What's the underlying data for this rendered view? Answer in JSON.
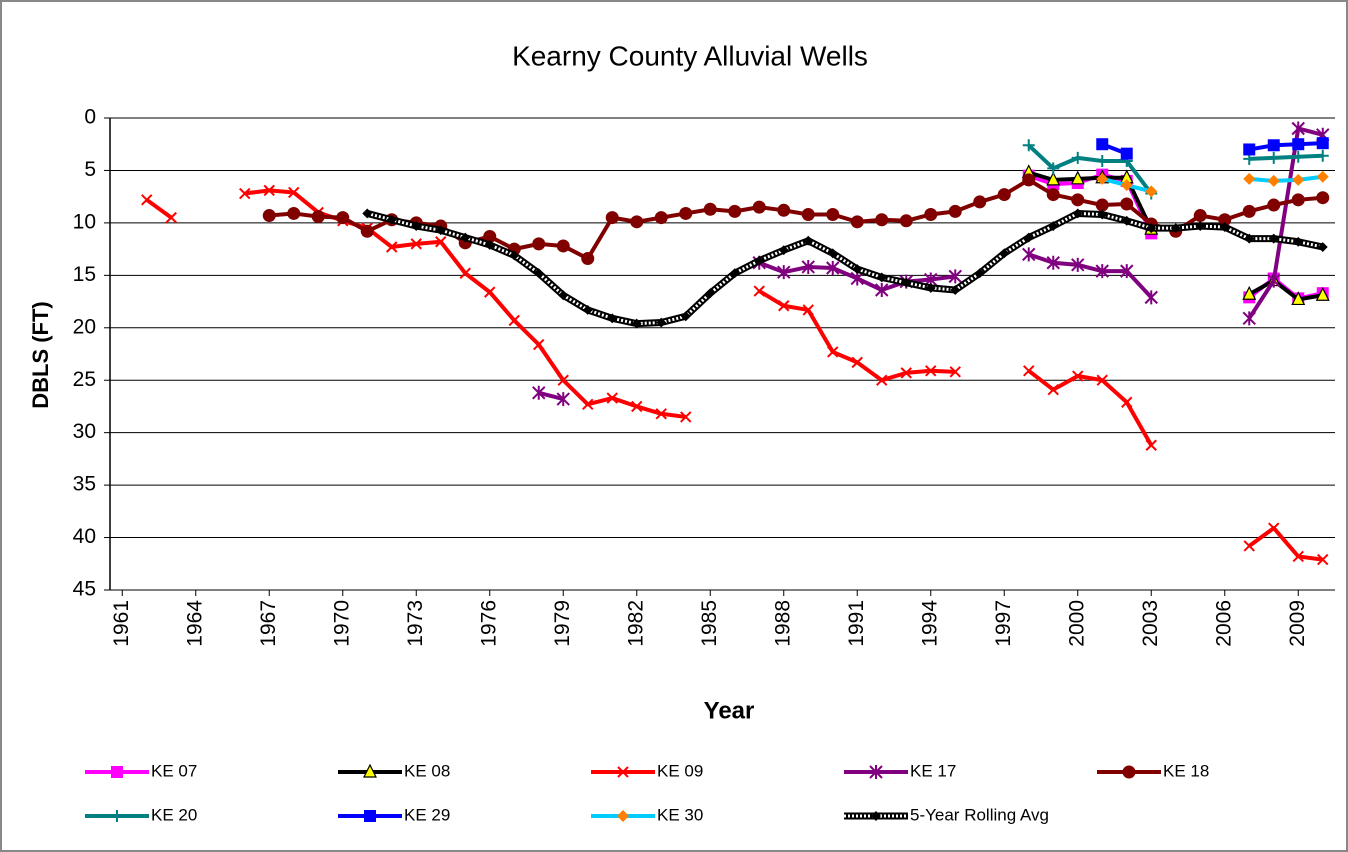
{
  "chart_data": {
    "type": "line",
    "title": "Kearny County Alluvial Wells",
    "x_label": "Year",
    "y_label": "DBLS (FT)",
    "x": [
      1961,
      1962,
      1963,
      1964,
      1965,
      1966,
      1967,
      1968,
      1969,
      1970,
      1971,
      1972,
      1973,
      1974,
      1975,
      1976,
      1977,
      1978,
      1979,
      1980,
      1981,
      1982,
      1983,
      1984,
      1985,
      1986,
      1987,
      1988,
      1989,
      1990,
      1991,
      1992,
      1993,
      1994,
      1995,
      1996,
      1997,
      1998,
      1999,
      2000,
      2001,
      2002,
      2003,
      2004,
      2005,
      2006,
      2007,
      2008,
      2009,
      2010
    ],
    "xlim": [
      1960.5,
      2010.5
    ],
    "xticks": [
      1961,
      1964,
      1967,
      1970,
      1973,
      1976,
      1979,
      1982,
      1985,
      1988,
      1991,
      1994,
      1997,
      2000,
      2003,
      2006,
      2009
    ],
    "ylim": [
      0,
      45
    ],
    "y_inverted": true,
    "yticks": [
      0,
      5,
      10,
      15,
      20,
      25,
      30,
      35,
      40,
      45
    ],
    "grid": true,
    "legend": "bottom",
    "series": [
      {
        "name": "KE 07",
        "color": "#ff00ff",
        "marker": "square",
        "marker_color": "#ff00ff",
        "values": [
          null,
          null,
          null,
          null,
          null,
          null,
          null,
          null,
          null,
          null,
          null,
          null,
          null,
          null,
          null,
          null,
          null,
          null,
          null,
          null,
          null,
          null,
          null,
          null,
          null,
          null,
          null,
          null,
          null,
          null,
          null,
          null,
          null,
          null,
          null,
          null,
          null,
          5.5,
          6.3,
          6.2,
          5.4,
          6.0,
          11.0,
          null,
          null,
          null,
          17.1,
          15.3,
          17.2,
          16.7
        ]
      },
      {
        "name": "KE 08",
        "color": "#000000",
        "marker": "triangle",
        "marker_color": "#ffff00",
        "values": [
          null,
          null,
          null,
          null,
          null,
          null,
          null,
          null,
          null,
          null,
          null,
          null,
          null,
          null,
          null,
          null,
          null,
          null,
          null,
          null,
          null,
          null,
          null,
          null,
          null,
          null,
          null,
          null,
          null,
          null,
          null,
          null,
          null,
          null,
          null,
          null,
          null,
          5.2,
          5.9,
          5.8,
          5.7,
          5.7,
          10.6,
          null,
          null,
          null,
          16.8,
          15.5,
          17.3,
          16.9
        ]
      },
      {
        "name": "KE 09",
        "color": "#ff0000",
        "marker": "x",
        "marker_color": "#ff0000",
        "values": [
          null,
          7.8,
          9.5,
          null,
          null,
          7.2,
          6.9,
          7.1,
          9.0,
          9.8,
          10.5,
          12.3,
          12.0,
          11.8,
          14.8,
          16.6,
          19.3,
          21.6,
          25.0,
          27.3,
          26.7,
          27.5,
          28.2,
          28.5,
          null,
          null,
          16.5,
          17.9,
          18.3,
          22.3,
          23.3,
          25.0,
          24.3,
          24.1,
          24.2,
          null,
          null,
          24.1,
          25.9,
          24.6,
          25.0,
          27.1,
          31.2,
          null,
          null,
          null,
          40.8,
          39.1,
          41.8,
          42.1
        ]
      },
      {
        "name": "KE 17",
        "color": "#800080",
        "marker": "star",
        "marker_color": "#800080",
        "values": [
          null,
          null,
          null,
          null,
          null,
          null,
          null,
          null,
          null,
          null,
          null,
          null,
          null,
          null,
          null,
          null,
          null,
          26.2,
          26.8,
          null,
          null,
          null,
          null,
          null,
          null,
          null,
          13.8,
          14.7,
          14.2,
          14.3,
          15.3,
          16.4,
          15.6,
          15.4,
          15.1,
          null,
          null,
          13.0,
          13.8,
          14.0,
          14.6,
          14.6,
          17.1,
          null,
          null,
          null,
          19.1,
          15.5,
          1.0,
          1.6
        ]
      },
      {
        "name": "KE 18",
        "color": "#800000",
        "marker": "circle",
        "marker_color": "#800000",
        "values": [
          null,
          null,
          null,
          null,
          null,
          null,
          9.3,
          9.1,
          9.4,
          9.5,
          10.8,
          9.7,
          10.0,
          10.3,
          11.9,
          11.3,
          12.5,
          12.0,
          12.2,
          13.4,
          9.5,
          9.9,
          9.5,
          9.1,
          8.7,
          8.9,
          8.5,
          8.8,
          9.2,
          9.2,
          9.9,
          9.7,
          9.8,
          9.2,
          8.9,
          8.0,
          7.3,
          5.9,
          7.3,
          7.8,
          8.3,
          8.2,
          10.1,
          10.8,
          9.3,
          9.7,
          8.9,
          8.3,
          7.8,
          7.6
        ]
      },
      {
        "name": "KE 20",
        "color": "#008080",
        "marker": "plus",
        "marker_color": "#008080",
        "values": [
          null,
          null,
          null,
          null,
          null,
          null,
          null,
          null,
          null,
          null,
          null,
          null,
          null,
          null,
          null,
          null,
          null,
          null,
          null,
          null,
          null,
          null,
          null,
          null,
          null,
          null,
          null,
          null,
          null,
          null,
          null,
          null,
          null,
          null,
          null,
          null,
          null,
          2.6,
          4.8,
          3.8,
          4.1,
          4.1,
          7.2,
          null,
          null,
          null,
          3.9,
          3.8,
          3.7,
          3.6
        ]
      },
      {
        "name": "KE 29",
        "color": "#0000ff",
        "marker": "square",
        "marker_color": "#0000ff",
        "values": [
          null,
          null,
          null,
          null,
          null,
          null,
          null,
          null,
          null,
          null,
          null,
          null,
          null,
          null,
          null,
          null,
          null,
          null,
          null,
          null,
          null,
          null,
          null,
          null,
          null,
          null,
          null,
          null,
          null,
          null,
          null,
          null,
          null,
          null,
          null,
          null,
          null,
          null,
          null,
          null,
          2.5,
          3.4,
          null,
          null,
          null,
          null,
          3.0,
          2.6,
          2.5,
          2.4
        ]
      },
      {
        "name": "KE 30",
        "color": "#00ccff",
        "marker": "diamond",
        "marker_color": "#ff8000",
        "values": [
          null,
          null,
          null,
          null,
          null,
          null,
          null,
          null,
          null,
          null,
          null,
          null,
          null,
          null,
          null,
          null,
          null,
          null,
          null,
          null,
          null,
          null,
          null,
          null,
          null,
          null,
          null,
          null,
          null,
          null,
          null,
          null,
          null,
          null,
          null,
          null,
          null,
          null,
          null,
          null,
          5.8,
          6.4,
          7.0,
          null,
          null,
          null,
          5.8,
          6.0,
          5.9,
          5.6
        ]
      },
      {
        "name": "5-Year Rolling Avg",
        "color": "#000000",
        "marker": "dot",
        "marker_color": "#000000",
        "dotted": true,
        "values": [
          null,
          null,
          null,
          null,
          null,
          null,
          null,
          null,
          null,
          null,
          9.1,
          9.7,
          10.3,
          10.7,
          11.4,
          12.1,
          13.1,
          14.8,
          16.9,
          18.3,
          19.1,
          19.6,
          19.5,
          18.9,
          16.7,
          14.8,
          13.6,
          12.6,
          11.7,
          12.9,
          14.4,
          15.2,
          15.7,
          16.2,
          16.4,
          14.8,
          12.9,
          11.4,
          10.3,
          9.1,
          9.2,
          9.8,
          10.5,
          10.5,
          10.3,
          10.4,
          11.5,
          11.5,
          11.8,
          12.3
        ]
      }
    ]
  }
}
